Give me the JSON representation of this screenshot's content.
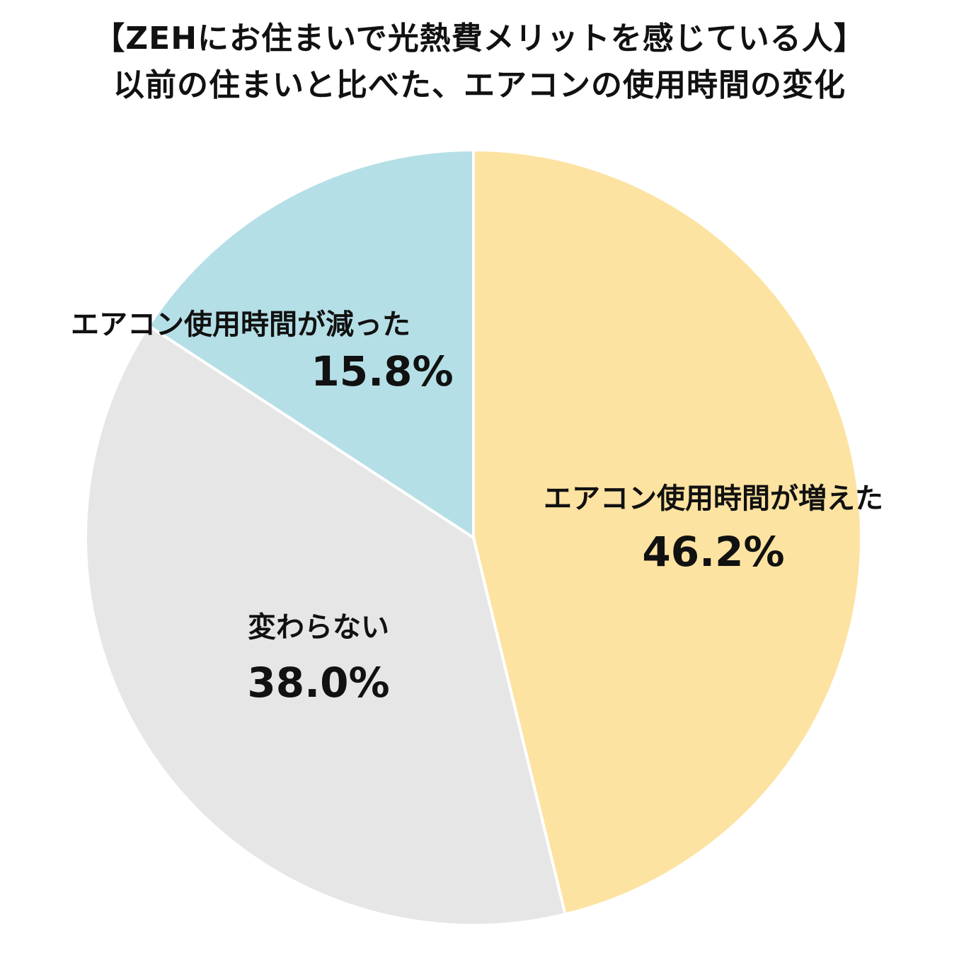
{
  "chart_data": {
    "type": "pie",
    "title_lines": [
      "【ZEHにお住まいで光熱費メリットを感じている人】",
      "以前の住まいと比べた、エアコンの使用時間の変化"
    ],
    "start": "12 o'clock",
    "direction": "clockwise",
    "slices": [
      {
        "label": "エアコン使用時間が増えた",
        "value": 46.2,
        "value_label": "46.2%",
        "color": "#fde3a1"
      },
      {
        "label": "変わらない",
        "value": 38.0,
        "value_label": "38.0%",
        "color": "#e6e6e6"
      },
      {
        "label": "エアコン使用時間が減った",
        "value": 15.8,
        "value_label": "15.8%",
        "color": "#b5dfe6"
      }
    ],
    "slice_border_color": "#ffffff"
  }
}
